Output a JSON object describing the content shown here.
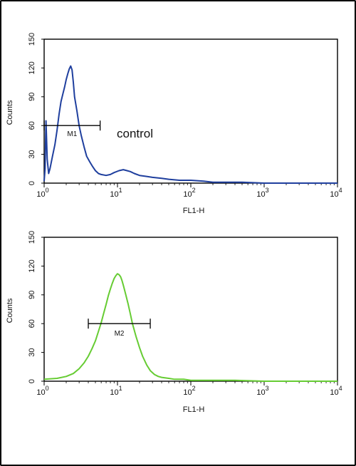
{
  "chart_data": [
    {
      "type": "line",
      "title": "",
      "xlabel": "FL1-H",
      "ylabel": "Counts",
      "xscale": "log",
      "xlim": [
        1,
        10000
      ],
      "ylim": [
        0,
        150
      ],
      "yticks": [
        0,
        30,
        60,
        90,
        120,
        150
      ],
      "xtick_bases": [
        "10",
        "10",
        "10",
        "10",
        "10"
      ],
      "xtick_exps": [
        "0",
        "1",
        "2",
        "3",
        "4"
      ],
      "color": "#1f3f9e",
      "annotation": "control",
      "gate": {
        "label": "M1",
        "x_start": 1,
        "x_end": 5.8,
        "y": 60
      },
      "series": [
        {
          "x": [
            1.0,
            1.03,
            1.06,
            1.1,
            1.15,
            1.2,
            1.3,
            1.4,
            1.5,
            1.6,
            1.7,
            1.8,
            1.9,
            2.0,
            2.1,
            2.2,
            2.3,
            2.4,
            2.5,
            2.6,
            2.8,
            3.0,
            3.2,
            3.5,
            3.8,
            4.2,
            4.6,
            5.0,
            5.5,
            6.0,
            7.0,
            8.0,
            9.0,
            10.5,
            12.0,
            13.5,
            15.0,
            17.0,
            20.0,
            25.0,
            30.0,
            40.0,
            50.0,
            70.0,
            100.0,
            150.0,
            200.0,
            300.0,
            500.0,
            1000.0,
            2000.0,
            5000.0,
            10000.0
          ],
          "values": [
            2,
            15,
            65,
            25,
            10,
            15,
            28,
            40,
            55,
            72,
            85,
            93,
            100,
            108,
            114,
            119,
            122,
            118,
            105,
            90,
            75,
            60,
            50,
            38,
            28,
            22,
            17,
            13,
            10,
            9,
            8,
            9,
            11,
            13,
            14,
            13,
            12,
            10,
            8,
            7,
            6,
            5,
            4,
            3,
            3,
            2,
            1,
            1,
            1,
            0,
            0,
            0,
            0
          ]
        }
      ]
    },
    {
      "type": "line",
      "title": "",
      "xlabel": "FL1-H",
      "ylabel": "Counts",
      "xscale": "log",
      "xlim": [
        1,
        10000
      ],
      "ylim": [
        0,
        150
      ],
      "yticks": [
        0,
        30,
        60,
        90,
        120,
        150
      ],
      "xtick_bases": [
        "10",
        "10",
        "10",
        "10",
        "10"
      ],
      "xtick_exps": [
        "0",
        "1",
        "2",
        "3",
        "4"
      ],
      "color": "#66cc33",
      "gate": {
        "label": "M2",
        "x_start": 4,
        "x_end": 28,
        "y": 60
      },
      "series": [
        {
          "x": [
            1.0,
            1.5,
            2.0,
            2.5,
            3.0,
            3.5,
            4.0,
            4.5,
            5.0,
            5.5,
            6.0,
            6.5,
            7.0,
            7.5,
            8.0,
            8.5,
            9.0,
            9.5,
            10.0,
            10.5,
            11.0,
            11.5,
            12.0,
            13.0,
            14.0,
            15.0,
            16.0,
            18.0,
            20.0,
            22.0,
            25.0,
            28.0,
            32.0,
            36.0,
            40.0,
            50.0,
            60.0,
            80.0,
            100.0,
            150.0,
            200.0,
            400.0,
            1000.0,
            10000.0
          ],
          "values": [
            2,
            3,
            5,
            8,
            13,
            19,
            26,
            34,
            42,
            52,
            61,
            71,
            80,
            89,
            96,
            102,
            107,
            110,
            112,
            111,
            109,
            105,
            100,
            90,
            80,
            70,
            60,
            46,
            35,
            26,
            17,
            11,
            7,
            5,
            4,
            3,
            2,
            2,
            1,
            1,
            1,
            1,
            0,
            0
          ]
        }
      ]
    }
  ]
}
